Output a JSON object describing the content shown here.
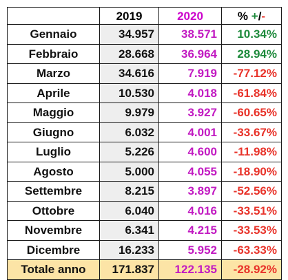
{
  "headers": {
    "month": "",
    "y2019": "2019",
    "y2020": "2020",
    "pct_main": "% ",
    "pct_plus": "+",
    "pct_slash": "/",
    "pct_minus": "-"
  },
  "rows": [
    {
      "month": "Gennaio",
      "y2019": "34.957",
      "y2020": "38.571",
      "pct": "10.34%"
    },
    {
      "month": "Febbraio",
      "y2019": "28.668",
      "y2020": "36.964",
      "pct": "28.94%"
    },
    {
      "month": "Marzo",
      "y2019": "34.616",
      "y2020": "7.919",
      "pct": "-77.12%"
    },
    {
      "month": "Aprile",
      "y2019": "10.530",
      "y2020": "4.018",
      "pct": "-61.84%"
    },
    {
      "month": "Maggio",
      "y2019": "9.979",
      "y2020": "3.927",
      "pct": "-60.65%"
    },
    {
      "month": "Giugno",
      "y2019": "6.032",
      "y2020": "4.001",
      "pct": "-33.67%"
    },
    {
      "month": "Luglio",
      "y2019": "5.226",
      "y2020": "4.600",
      "pct": "-11.98%"
    },
    {
      "month": "Agosto",
      "y2019": "5.000",
      "y2020": "4.055",
      "pct": "-18.90%"
    },
    {
      "month": "Settembre",
      "y2019": "8.215",
      "y2020": "3.897",
      "pct": "-52.56%"
    },
    {
      "month": "Ottobre",
      "y2019": "6.040",
      "y2020": "4.016",
      "pct": "-33.51%"
    },
    {
      "month": "Novembre",
      "y2019": "6.341",
      "y2020": "4.215",
      "pct": "-33.53%"
    },
    {
      "month": "Dicembre",
      "y2019": "16.233",
      "y2020": "5.952",
      "pct": "-63.33%"
    }
  ],
  "total": {
    "label": "Totale anno",
    "y2019": "171.837",
    "y2020": "122.135",
    "pct": "-28.92%"
  },
  "colors": {
    "year2020": "#c21bc2",
    "positive": "#1e8a3c",
    "negative": "#e8332a",
    "total_row_bg": "#fce4a6",
    "col2019_bg": "#eeeeee"
  }
}
